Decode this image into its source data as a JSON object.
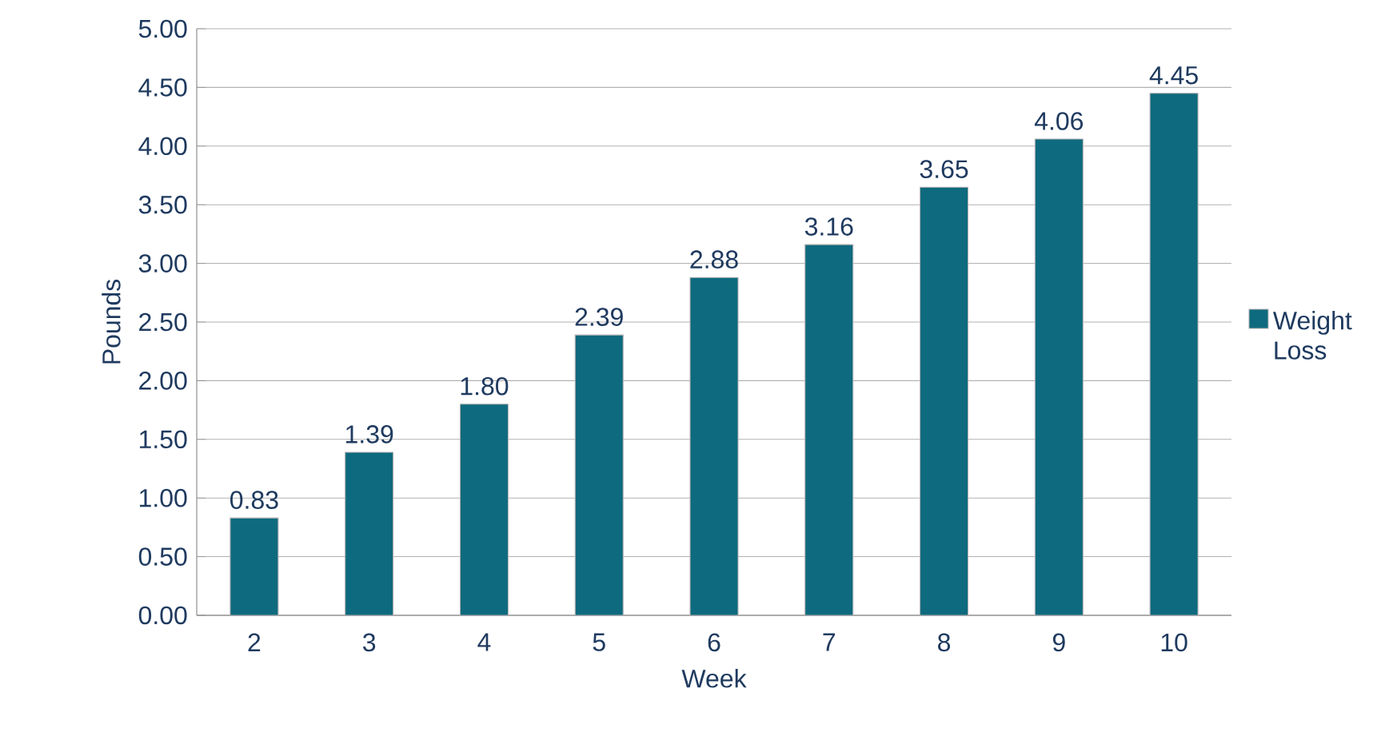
{
  "chart_data": {
    "type": "bar",
    "xlabel": "Week",
    "ylabel": "Pounds",
    "categories": [
      "2",
      "3",
      "4",
      "5",
      "6",
      "7",
      "8",
      "9",
      "10"
    ],
    "series": [
      {
        "name": "Weight Loss",
        "color": "#0e6a7e",
        "values": [
          0.83,
          1.39,
          1.8,
          2.39,
          2.88,
          3.16,
          3.65,
          4.06,
          4.45
        ],
        "value_labels": [
          "0.83",
          "1.39",
          "1.80",
          "2.39",
          "2.88",
          "3.16",
          "3.65",
          "4.06",
          "4.45"
        ]
      }
    ],
    "ylim": [
      0,
      5
    ],
    "yticks": [
      {
        "value": 0,
        "label": "0.00"
      },
      {
        "value": 0.5,
        "label": "0.50"
      },
      {
        "value": 1,
        "label": "1.00"
      },
      {
        "value": 1.5,
        "label": "1.50"
      },
      {
        "value": 2,
        "label": "2.00"
      },
      {
        "value": 2.5,
        "label": "2.50"
      },
      {
        "value": 3,
        "label": "3.00"
      },
      {
        "value": 3.5,
        "label": "3.50"
      },
      {
        "value": 4,
        "label": "4.00"
      },
      {
        "value": 4.5,
        "label": "4.50"
      },
      {
        "value": 5,
        "label": "5.00"
      }
    ],
    "grid": "y",
    "legend": "right"
  }
}
